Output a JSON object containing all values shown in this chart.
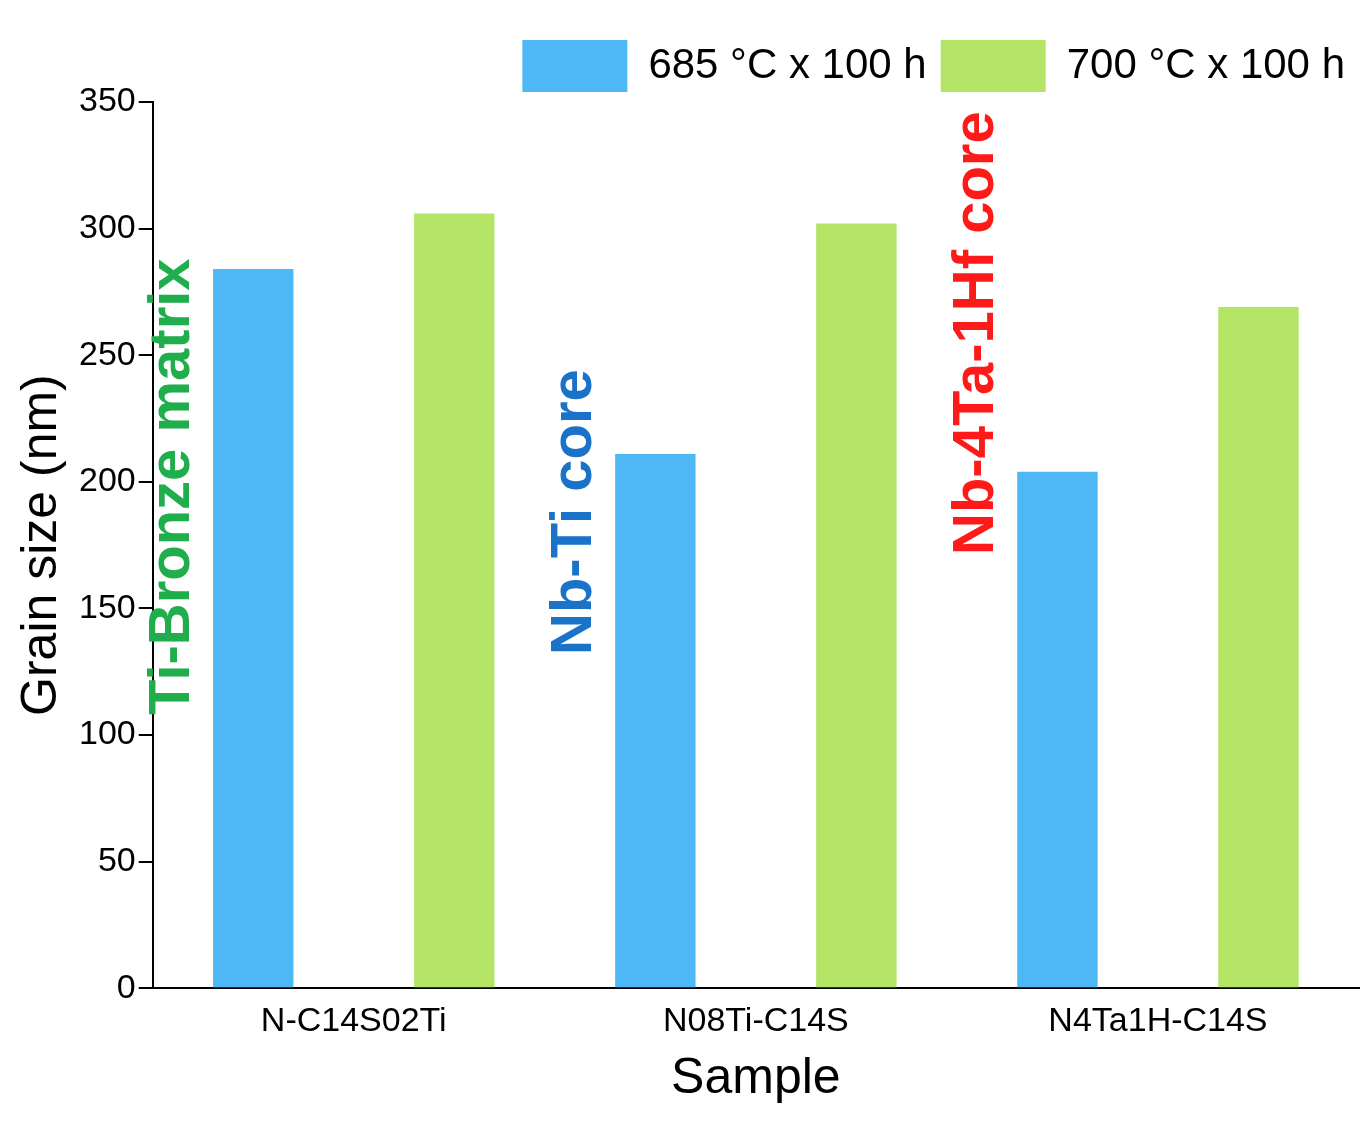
{
  "chart_data": {
    "type": "bar",
    "xlabel": "Sample",
    "ylabel": "Grain size (nm)",
    "categories": [
      "N-C14S02Ti",
      "N08Ti-C14S",
      "N4Ta1H-C14S"
    ],
    "series": [
      {
        "name": "685 °C x 100 h",
        "color": "#4db8f5",
        "values": [
          284,
          211,
          204
        ]
      },
      {
        "name": "700 °C x 100 h",
        "color": "#b3e466",
        "values": [
          306,
          302,
          269
        ]
      }
    ],
    "ylim": [
      0,
      350
    ],
    "yticks": [
      0,
      50,
      100,
      150,
      200,
      250,
      300,
      350
    ],
    "grid": false,
    "legend": "top right",
    "annotations": [
      "Ti-Bronze matrix",
      "Nb-Ti core",
      "Nb-4Ta-1Hf core"
    ]
  }
}
